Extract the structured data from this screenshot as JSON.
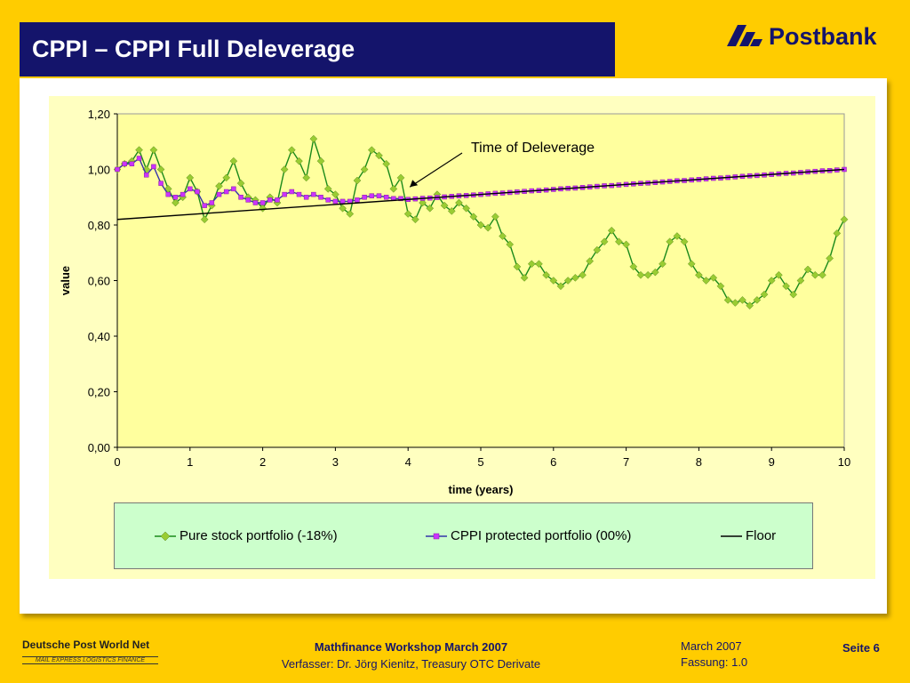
{
  "header": {
    "title": "CPPI – CPPI Full Deleverage",
    "logo_text": "Postbank"
  },
  "footer": {
    "dp_logo_text": "Deutsche Post World Net",
    "dp_tagline": "MAIL EXPRESS LOGISTICS FINANCE",
    "workshop": "Mathfinance Workshop March 2007",
    "author": "Verfasser: Dr. Jörg Kienitz, Treasury OTC Derivate",
    "date": "March 2007",
    "version": "Fassung: 1.0",
    "page": "Seite 6"
  },
  "chart_data": {
    "type": "line",
    "xlabel": "time (years)",
    "ylabel": "value",
    "xlim": [
      0,
      10
    ],
    "ylim": [
      0,
      1.2
    ],
    "xticks": [
      "0",
      "1",
      "2",
      "3",
      "4",
      "5",
      "6",
      "7",
      "8",
      "9",
      "10"
    ],
    "yticks": [
      "0,00",
      "0,20",
      "0,40",
      "0,60",
      "0,80",
      "1,00",
      "1,20"
    ],
    "annotation": "Time of Deleverage",
    "annotation_x": 4.0,
    "annotation_y": 0.892,
    "legend_position": "bottom",
    "x_step": 0.1,
    "series": [
      {
        "name": "Pure stock portfolio (-18%)",
        "color": "#1a8a1a",
        "marker_color": "#99CC33",
        "marker": "diamond",
        "values": [
          1.0,
          1.02,
          1.03,
          1.07,
          1.0,
          1.07,
          1.0,
          0.93,
          0.88,
          0.9,
          0.97,
          0.92,
          0.82,
          0.87,
          0.94,
          0.97,
          1.03,
          0.95,
          0.9,
          0.89,
          0.86,
          0.9,
          0.88,
          1.0,
          1.07,
          1.03,
          0.97,
          1.11,
          1.03,
          0.93,
          0.91,
          0.86,
          0.84,
          0.96,
          1.0,
          1.07,
          1.05,
          1.02,
          0.93,
          0.97,
          0.84,
          0.82,
          0.88,
          0.86,
          0.91,
          0.87,
          0.85,
          0.88,
          0.86,
          0.83,
          0.8,
          0.79,
          0.83,
          0.76,
          0.73,
          0.65,
          0.61,
          0.66,
          0.66,
          0.62,
          0.6,
          0.58,
          0.6,
          0.61,
          0.62,
          0.67,
          0.71,
          0.74,
          0.78,
          0.74,
          0.73,
          0.65,
          0.62,
          0.62,
          0.63,
          0.66,
          0.74,
          0.76,
          0.74,
          0.66,
          0.62,
          0.6,
          0.61,
          0.58,
          0.53,
          0.52,
          0.53,
          0.51,
          0.53,
          0.55,
          0.6,
          0.62,
          0.58,
          0.55,
          0.6,
          0.64,
          0.62,
          0.62,
          0.68,
          0.77,
          0.82
        ]
      },
      {
        "name": "CPPI protected portfolio (00%)",
        "color": "#3333AA",
        "marker_color": "#CC33FF",
        "marker": "square",
        "values": [
          1.0,
          1.02,
          1.02,
          1.04,
          0.98,
          1.01,
          0.95,
          0.91,
          0.9,
          0.91,
          0.93,
          0.92,
          0.87,
          0.88,
          0.91,
          0.92,
          0.93,
          0.9,
          0.89,
          0.88,
          0.88,
          0.89,
          0.89,
          0.91,
          0.92,
          0.91,
          0.9,
          0.91,
          0.9,
          0.89,
          0.885,
          0.885,
          0.885,
          0.89,
          0.9,
          0.905,
          0.905,
          0.9,
          0.895,
          0.895,
          0.892,
          0.894,
          0.896,
          0.897,
          0.899,
          0.901,
          0.903,
          0.905,
          0.906,
          0.908,
          0.91,
          0.912,
          0.914,
          0.915,
          0.917,
          0.919,
          0.921,
          0.923,
          0.924,
          0.926,
          0.928,
          0.93,
          0.932,
          0.933,
          0.935,
          0.937,
          0.939,
          0.941,
          0.942,
          0.944,
          0.946,
          0.948,
          0.95,
          0.951,
          0.953,
          0.955,
          0.957,
          0.959,
          0.96,
          0.962,
          0.964,
          0.966,
          0.968,
          0.969,
          0.971,
          0.973,
          0.975,
          0.977,
          0.978,
          0.98,
          0.982,
          0.984,
          0.986,
          0.987,
          0.989,
          0.991,
          0.993,
          0.995,
          0.996,
          0.998,
          1.0
        ]
      },
      {
        "name": "Floor",
        "color": "#000000",
        "marker": "none",
        "x": [
          0,
          10
        ],
        "values": [
          0.82,
          1.0
        ]
      }
    ]
  }
}
